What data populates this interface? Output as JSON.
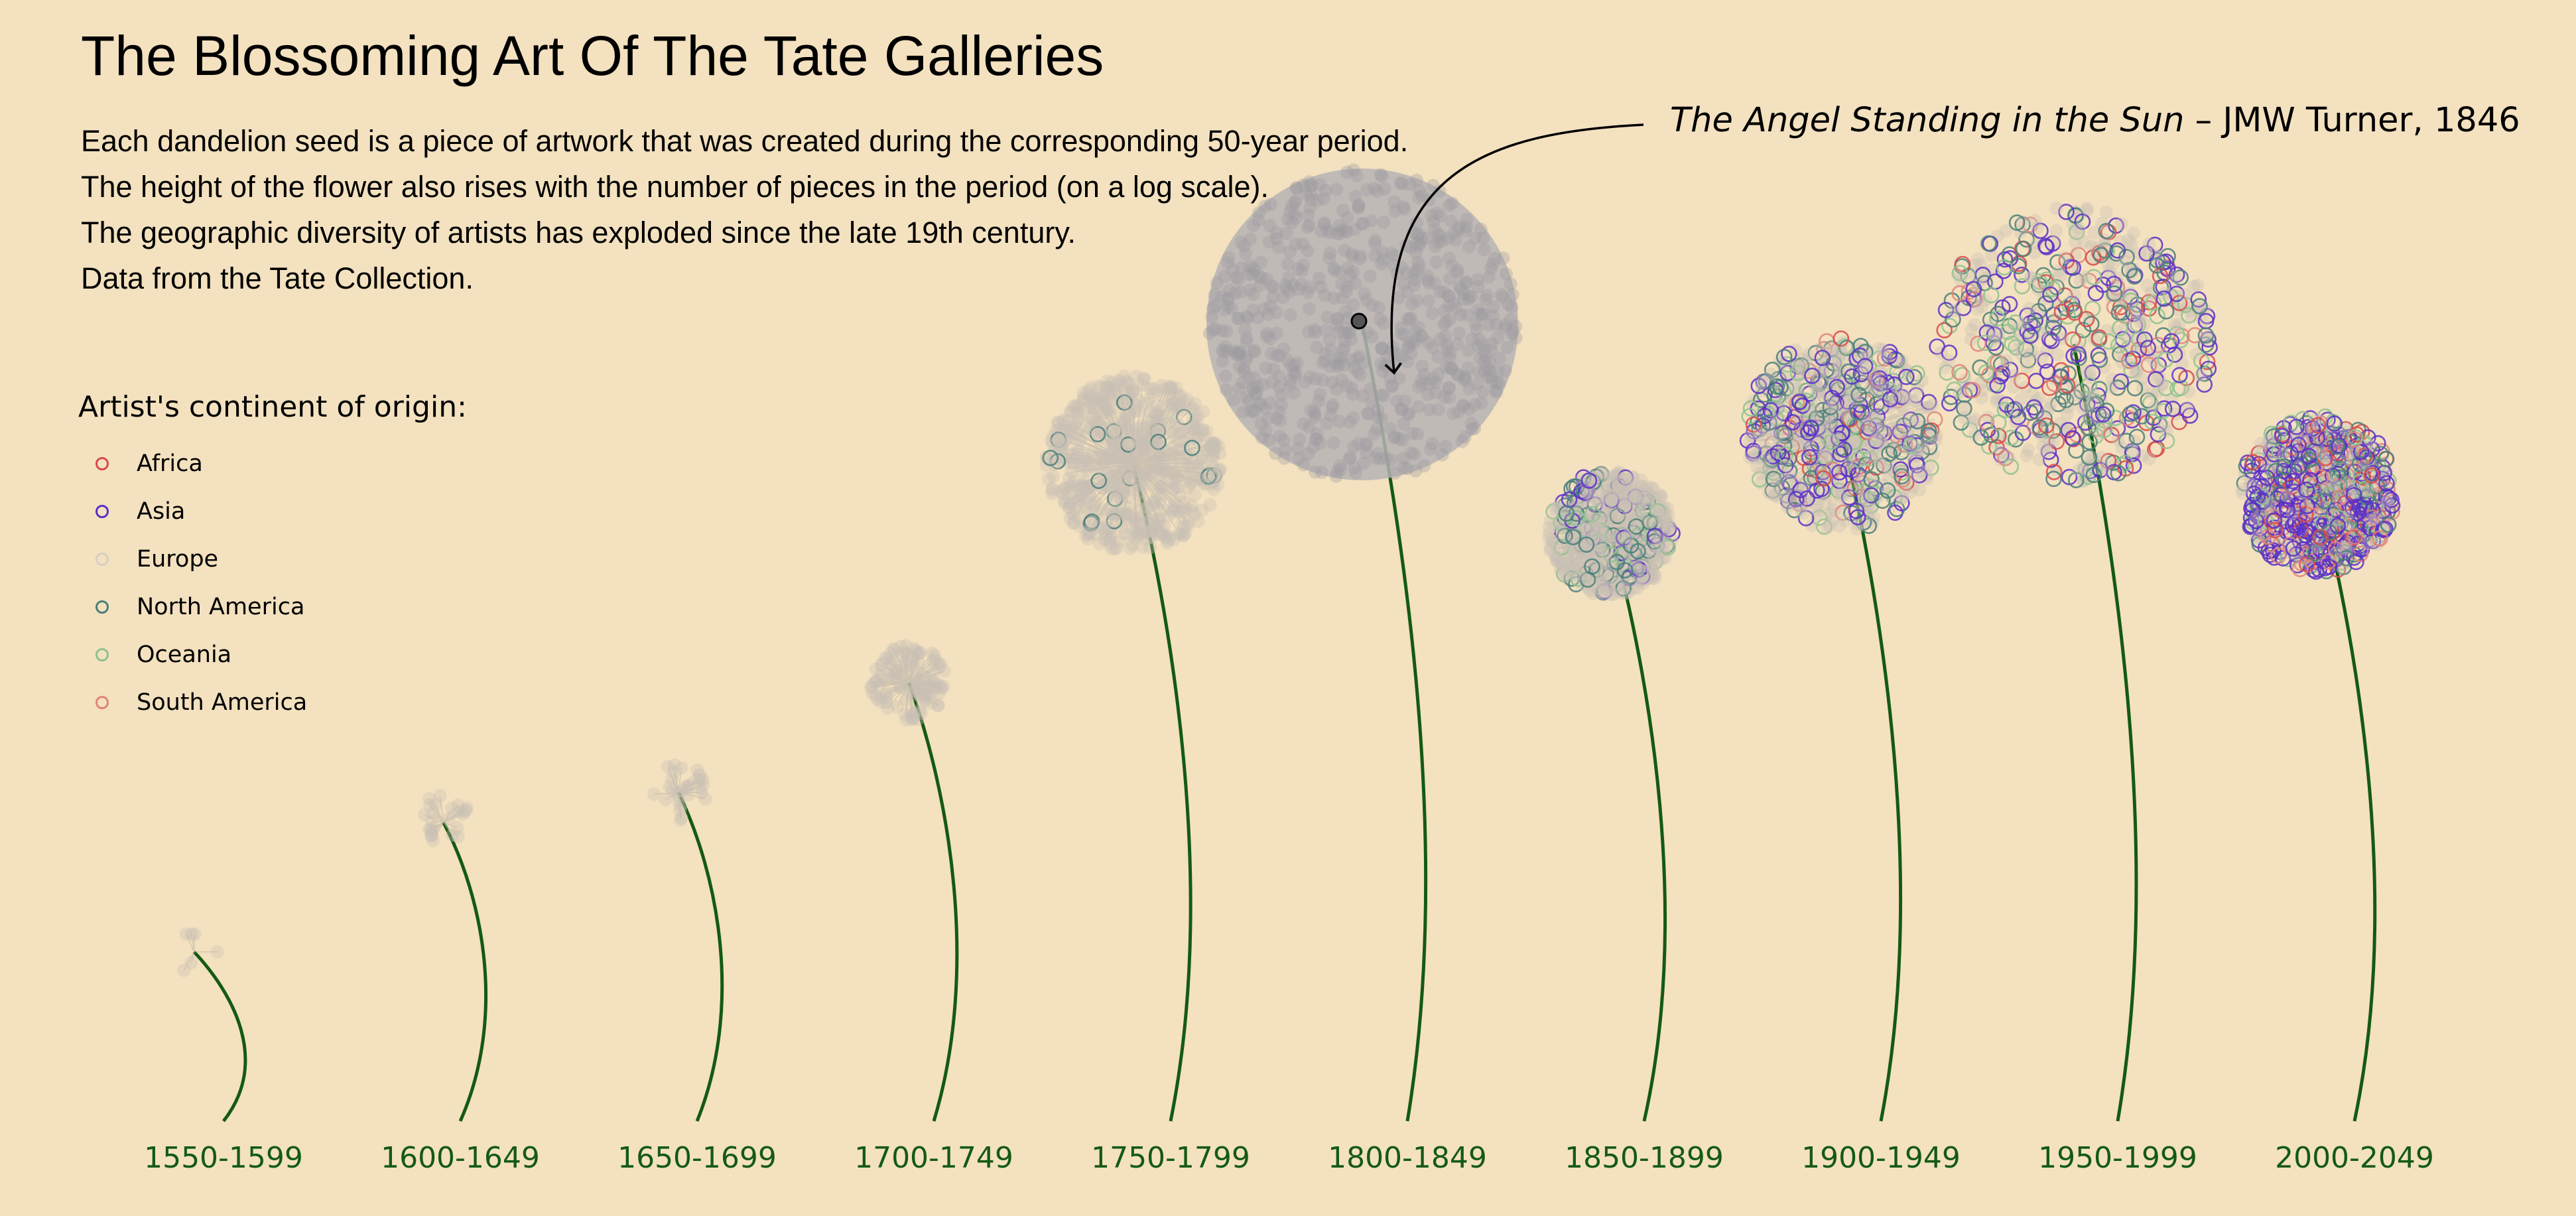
{
  "title": "The Blossoming Art Of The Tate Galleries",
  "description": [
    "Each dandelion seed is a piece of artwork that was created during the corresponding 50-year period.",
    "The height of the flower also rises with the number of pieces in the period (on a log scale).",
    "The geographic diversity of artists has exploded since the late 19th century.",
    "Data from the Tate Collection."
  ],
  "legend": {
    "title": "Artist's continent of origin:",
    "items": [
      {
        "label": "Africa",
        "color": "#d94a4a"
      },
      {
        "label": "Asia",
        "color": "#5a2fc8"
      },
      {
        "label": "Europe",
        "color": "#d8cfc2"
      },
      {
        "label": "North America",
        "color": "#4a7f7a"
      },
      {
        "label": "Oceania",
        "color": "#8ec28e"
      },
      {
        "label": "South America",
        "color": "#e0837a"
      }
    ]
  },
  "annotation": {
    "work": "The Angel Standing in the Sun",
    "separator": " – ",
    "artist": "JMW Turner, 1846"
  },
  "chart_data": {
    "type": "scatter",
    "encoding": "dandelion",
    "height_scale": "log",
    "stem_color": "#145a14",
    "periods": [
      {
        "label": "1550-1599",
        "seeds": 6,
        "height": 0.17,
        "mix": {
          "Europe": 1.0
        }
      },
      {
        "label": "1600-1649",
        "seeds": 25,
        "height": 0.3,
        "mix": {
          "Europe": 1.0
        }
      },
      {
        "label": "1650-1699",
        "seeds": 30,
        "height": 0.33,
        "mix": {
          "Europe": 1.0
        }
      },
      {
        "label": "1700-1749",
        "seeds": 110,
        "height": 0.44,
        "mix": {
          "Europe": 1.0
        }
      },
      {
        "label": "1750-1799",
        "seeds": 1500,
        "height": 0.66,
        "mix": {
          "Europe": 0.97,
          "North America": 0.03
        }
      },
      {
        "label": "1800-1849",
        "seeds": 6000,
        "height": 0.8,
        "mix": {
          "Europe": 1.0
        }
      },
      {
        "label": "1850-1899",
        "seeds": 600,
        "height": 0.59,
        "mix": {
          "Europe": 0.78,
          "North America": 0.12,
          "Asia": 0.06,
          "Oceania": 0.04
        }
      },
      {
        "label": "1900-1949",
        "seeds": 1900,
        "height": 0.69,
        "mix": {
          "Europe": 0.55,
          "North America": 0.15,
          "Asia": 0.18,
          "Oceania": 0.06,
          "Africa": 0.03,
          "South America": 0.03
        }
      },
      {
        "label": "1950-1999",
        "seeds": 4500,
        "height": 0.78,
        "mix": {
          "Europe": 0.45,
          "North America": 0.17,
          "Asia": 0.18,
          "Oceania": 0.1,
          "Africa": 0.05,
          "South America": 0.05
        }
      },
      {
        "label": "2000-2049",
        "seeds": 1100,
        "height": 0.63,
        "mix": {
          "Europe": 0.3,
          "North America": 0.12,
          "Asia": 0.35,
          "Oceania": 0.08,
          "Africa": 0.07,
          "South America": 0.08
        }
      }
    ],
    "highlight": {
      "period": "1800-1849",
      "work": "The Angel Standing in the Sun",
      "artist": "JMW Turner",
      "year": 1846
    }
  }
}
